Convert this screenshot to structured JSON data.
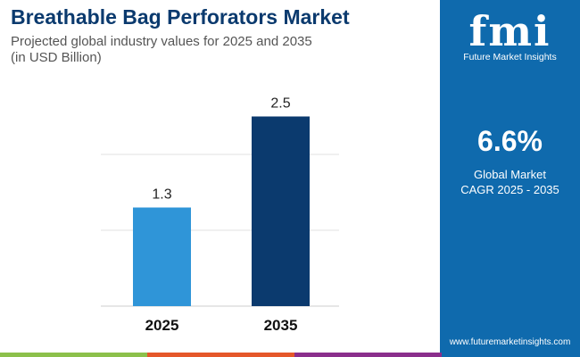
{
  "title": "Breathable Bag Perforators Market",
  "subtitle_line1": "Projected global industry values for 2025 and 2035",
  "subtitle_line2": "(in USD Billion)",
  "chart_data": {
    "type": "bar",
    "categories": [
      "2025",
      "2035"
    ],
    "values": [
      1.3,
      2.5
    ],
    "ylim": [
      0,
      2.5
    ],
    "grid": true,
    "colors": [
      "#2f95d8",
      "#0b3a6e"
    ]
  },
  "panel": {
    "logo_text": "fmi",
    "brand": "Future Market Insights",
    "cagr": "6.6%",
    "cagr_label1": "Global Market",
    "cagr_label2": "CAGR 2025 - 2035",
    "url": "www.futuremarketinsights.com",
    "color": "#0f6aad"
  },
  "footer_colors": [
    "#8cc04b",
    "#e5572a",
    "#8a2e8c"
  ]
}
